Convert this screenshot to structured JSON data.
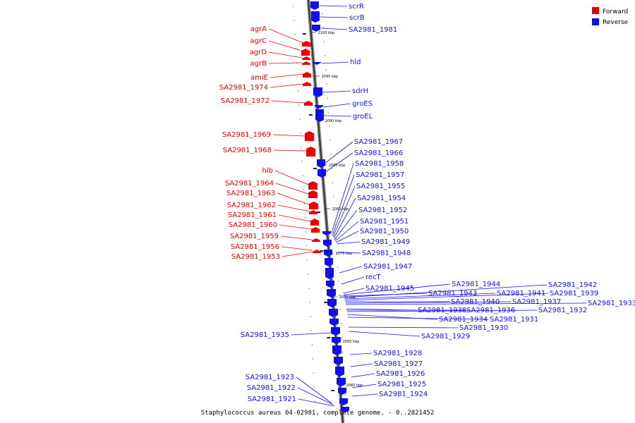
{
  "caption": "Staphylococcus aureus 04-02981, complete genome. - 0..2821452",
  "legend": [
    {
      "label": "Forward",
      "color": "#ee0000"
    },
    {
      "label": "Reverse",
      "color": "#1010ee"
    }
  ],
  "axis_ticks": [
    "2100 kbp",
    "2095 kbp",
    "2090 kbp",
    "2085 kbp",
    "2080 kbp",
    "2075 kbp",
    "2070 kbp",
    "2065 kbp",
    "2060 kbp"
  ],
  "forward_genes": [
    "agrA",
    "agrC",
    "agrD",
    "agrB",
    "amiE",
    "SA2981_1974",
    "SA2981_1972",
    "SA2981_1969",
    "SA2981_1968",
    "hlb",
    "SA2981_1964",
    "SA2981_1963",
    "SA2981_1962",
    "SA2981_1961",
    "SA2981_1960",
    "SA2981_1959",
    "SA2981_1956",
    "SA2981_1953"
  ],
  "reverse_genes": [
    "scrR",
    "scrB",
    "SA2981_1981",
    "hld",
    "sdrH",
    "groES",
    "groEL",
    "SA2981_1967",
    "SA2981_1966",
    "SA2981_1958",
    "SA2981_1957",
    "SA2981_1955",
    "SA2981_1954",
    "SA2981_1952",
    "SA2981_1951",
    "SA2981_1950",
    "SA2981_1949",
    "SA2981_1948",
    "SA2981_1947",
    "recT",
    "SA2981_1945",
    "SA2981_1944",
    "SA2981_1943",
    "SA2981_1942",
    "SA2981_1941",
    "SA2981_1939",
    "SA2981_1940",
    "SA2981_1937",
    "SA2981_1933",
    "SA2981_1938",
    "SA2981_1936",
    "SA2981_1932",
    "SA2981_1934",
    "SA2981_1931",
    "SA2981_1930",
    "SA2981_1929",
    "SA2981_1935",
    "SA2981_1928",
    "SA2981_1927",
    "SA2981_1926",
    "SA2981_1925",
    "SA2981_1924",
    "SA2981_1923",
    "SA2981_1922",
    "SA2981_1921"
  ]
}
